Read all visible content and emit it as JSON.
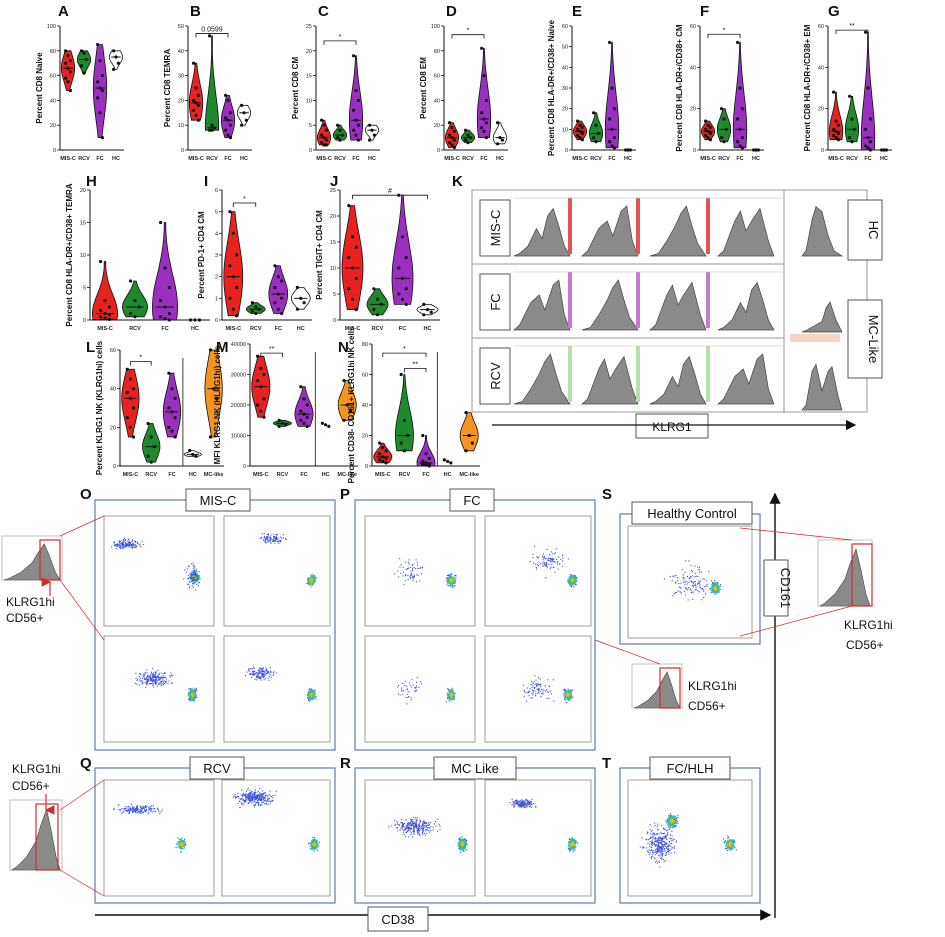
{
  "chart_data": [
    {
      "id": "A",
      "type": "violin",
      "ylabel": "Percent CD8 Naive",
      "categories": [
        "MIS-C",
        "RCV",
        "FC",
        "HC"
      ],
      "colors": [
        "#e8231f",
        "#1e8a2c",
        "#9b2fbf",
        "#ffffff"
      ],
      "ylim": [
        0,
        100
      ],
      "yticks": [
        0,
        20,
        40,
        60,
        80,
        100
      ],
      "series": [
        [
          80,
          76,
          72,
          70,
          66,
          63,
          58,
          55,
          48
        ],
        [
          80,
          78,
          73,
          68,
          62
        ],
        [
          85,
          72,
          60,
          55,
          50,
          48,
          42,
          30,
          10
        ],
        [
          80,
          75,
          70,
          65
        ]
      ],
      "annotations": []
    },
    {
      "id": "B",
      "type": "violin",
      "ylabel": "Percent CD8 TEMRA",
      "categories": [
        "MIS-C",
        "RCV",
        "FC",
        "HC"
      ],
      "colors": [
        "#e8231f",
        "#1e8a2c",
        "#9b2fbf",
        "#ffffff"
      ],
      "ylim": [
        0,
        50
      ],
      "yticks": [
        0,
        10,
        20,
        30,
        40,
        50
      ],
      "series": [
        [
          35,
          25,
          22,
          20,
          19,
          18,
          16,
          14,
          12
        ],
        [
          46,
          10,
          9,
          8,
          8
        ],
        [
          22,
          20,
          15,
          13,
          12,
          10,
          8,
          6,
          5
        ],
        [
          18,
          15,
          12,
          10
        ]
      ],
      "annotations": [
        {
          "from": 0,
          "to": 2,
          "text": "0.0599",
          "y": 47
        }
      ]
    },
    {
      "id": "C",
      "type": "violin",
      "ylabel": "Percent CD8 CM",
      "categories": [
        "MIS-C",
        "RCV",
        "FC",
        "HC"
      ],
      "colors": [
        "#e8231f",
        "#1e8a2c",
        "#9b2fbf",
        "#ffffff"
      ],
      "ylim": [
        0,
        25
      ],
      "yticks": [
        0,
        5,
        10,
        15,
        20,
        25
      ],
      "series": [
        [
          6,
          5,
          4,
          3,
          2.5,
          2,
          1.5,
          1,
          1
        ],
        [
          5,
          4,
          3,
          2.5,
          2
        ],
        [
          19,
          12,
          10,
          8,
          6,
          5,
          4,
          3,
          2
        ],
        [
          5,
          4,
          3,
          2
        ]
      ],
      "annotations": [
        {
          "from": 0,
          "to": 2,
          "text": "*",
          "y": 22
        }
      ]
    },
    {
      "id": "D",
      "type": "violin",
      "ylabel": "Percent CD8 EM",
      "categories": [
        "MIS-C",
        "RCV",
        "FC",
        "HC"
      ],
      "colors": [
        "#e8231f",
        "#1e8a2c",
        "#9b2fbf",
        "#ffffff"
      ],
      "ylim": [
        0,
        100
      ],
      "yticks": [
        0,
        20,
        40,
        60,
        80,
        100
      ],
      "series": [
        [
          22,
          18,
          15,
          12,
          10,
          8,
          6,
          4,
          2
        ],
        [
          16,
          12,
          10,
          8,
          6
        ],
        [
          82,
          60,
          40,
          30,
          25,
          22,
          18,
          15,
          10
        ],
        [
          22,
          10,
          8,
          5
        ]
      ],
      "annotations": [
        {
          "from": 0,
          "to": 2,
          "text": "*",
          "y": 93
        }
      ]
    },
    {
      "id": "E",
      "type": "violin",
      "ylabel": "Percent CD8 HLA-DR+/CD38+ Naive",
      "categories": [
        "MIS-C",
        "RCV",
        "FC",
        "HC"
      ],
      "colors": [
        "#e8231f",
        "#1e8a2c",
        "#9b2fbf",
        "#ffffff"
      ],
      "ylim": [
        0,
        60
      ],
      "yticks": [
        0,
        10,
        20,
        30,
        40,
        50,
        60
      ],
      "series": [
        [
          14,
          12,
          11,
          10,
          9,
          8,
          7,
          6,
          5
        ],
        [
          18,
          12,
          8,
          6,
          4
        ],
        [
          52,
          30,
          20,
          15,
          10,
          6,
          4,
          2,
          1
        ],
        [
          0,
          0,
          0
        ]
      ],
      "annotations": []
    },
    {
      "id": "F",
      "type": "violin",
      "ylabel": "Percent CD8 HLA-DR+/CD38+ CM",
      "categories": [
        "MIS-C",
        "RCV",
        "FC",
        "HC"
      ],
      "colors": [
        "#e8231f",
        "#1e8a2c",
        "#9b2fbf",
        "#ffffff"
      ],
      "ylim": [
        0,
        60
      ],
      "yticks": [
        0,
        20,
        40,
        60
      ],
      "series": [
        [
          14,
          12,
          11,
          10,
          9,
          8,
          7,
          6,
          5
        ],
        [
          20,
          15,
          10,
          6,
          4
        ],
        [
          52,
          30,
          20,
          15,
          10,
          6,
          4,
          2,
          1
        ],
        [
          0,
          0,
          0
        ]
      ],
      "annotations": [
        {
          "from": 0,
          "to": 2,
          "text": "*",
          "y": 56
        }
      ]
    },
    {
      "id": "G",
      "type": "violin",
      "ylabel": "Percent CD8 HLA-DR+/CD38+ EM",
      "categories": [
        "MIS-C",
        "RCV",
        "FC",
        "HC"
      ],
      "colors": [
        "#e8231f",
        "#1e8a2c",
        "#9b2fbf",
        "#ffffff"
      ],
      "ylim": [
        0,
        60
      ],
      "yticks": [
        0,
        20,
        40,
        60
      ],
      "series": [
        [
          28,
          14,
          12,
          10,
          9,
          8,
          7,
          6,
          5
        ],
        [
          26,
          15,
          10,
          6,
          4
        ],
        [
          57,
          30,
          15,
          10,
          6,
          4,
          2,
          1,
          0
        ],
        [
          0,
          0,
          0
        ]
      ],
      "annotations": [
        {
          "from": 0,
          "to": 2,
          "text": "**",
          "y": 58
        }
      ]
    },
    {
      "id": "H",
      "type": "violin",
      "ylabel": "Percent CD8 HLA-DR+/CD38+ TEMRA",
      "categories": [
        "MIS-C",
        "RCV",
        "FC",
        "HC"
      ],
      "colors": [
        "#e8231f",
        "#1e8a2c",
        "#9b2fbf",
        "#ffffff"
      ],
      "ylim": [
        0,
        20
      ],
      "yticks": [
        0,
        5,
        10,
        15,
        20
      ],
      "series": [
        [
          9,
          3,
          2,
          1.5,
          1,
          0.8,
          0.5,
          0.3,
          0.1
        ],
        [
          6,
          3,
          2,
          1,
          0.5
        ],
        [
          15,
          8,
          5,
          3,
          2,
          1,
          0.5,
          0.2,
          0
        ],
        [
          0,
          0,
          0
        ]
      ],
      "annotations": []
    },
    {
      "id": "I",
      "type": "violin",
      "ylabel": "Percent PD-1+ CD4 CM",
      "categories": [
        "MIS-C",
        "RCV",
        "FC",
        "HC"
      ],
      "colors": [
        "#e8231f",
        "#1e8a2c",
        "#9b2fbf",
        "#ffffff"
      ],
      "ylim": [
        0,
        6
      ],
      "yticks": [
        0,
        1,
        2,
        3,
        4,
        5,
        6
      ],
      "series": [
        [
          5,
          4,
          3,
          2.5,
          2,
          1.5,
          1,
          0.5,
          0.2
        ],
        [
          0.8,
          0.6,
          0.5,
          0.4,
          0.3
        ],
        [
          2.5,
          2,
          1.8,
          1.5,
          1.2,
          1,
          0.8,
          0.5,
          0.3
        ],
        [
          1.5,
          1,
          0.8,
          0.5
        ]
      ],
      "annotations": [
        {
          "from": 0,
          "to": 1,
          "text": "*",
          "y": 5.4
        }
      ]
    },
    {
      "id": "J",
      "type": "violin",
      "ylabel": "Percent TIGIT+ CD4 CM",
      "categories": [
        "MIS-C",
        "RCV",
        "FC",
        "HC"
      ],
      "colors": [
        "#e8231f",
        "#1e8a2c",
        "#9b2fbf",
        "#ffffff"
      ],
      "ylim": [
        0,
        25
      ],
      "yticks": [
        0,
        5,
        10,
        15,
        20,
        25
      ],
      "series": [
        [
          22,
          16,
          14,
          12,
          10,
          8,
          6,
          4,
          2
        ],
        [
          6,
          4,
          3,
          2,
          1
        ],
        [
          24,
          16,
          12,
          10,
          8,
          6,
          5,
          4,
          3
        ],
        [
          3,
          2,
          1.5,
          1
        ]
      ],
      "annotations": [
        {
          "from": 0,
          "to": 3,
          "text": "#",
          "y": 24
        }
      ]
    },
    {
      "id": "L",
      "type": "violin",
      "ylabel": "Percent KLRG1 NK (KLRG1hi) cells",
      "categories": [
        "MIS-C",
        "RCV",
        "FC",
        "HC",
        "MC-like"
      ],
      "colors": [
        "#e8231f",
        "#1e8a2c",
        "#9b2fbf",
        "#ffffff",
        "#f7941d"
      ],
      "ylim": [
        0,
        60
      ],
      "yticks": [
        0,
        20,
        40,
        60
      ],
      "series": [
        [
          50,
          45,
          40,
          38,
          35,
          30,
          25,
          20,
          15
        ],
        [
          22,
          15,
          10,
          5,
          2
        ],
        [
          48,
          40,
          35,
          30,
          28,
          25,
          20,
          18,
          15
        ],
        [
          8,
          6,
          5
        ],
        [
          60,
          40,
          35,
          15
        ]
      ],
      "annotations": [
        {
          "from": 0,
          "to": 1,
          "text": "*",
          "y": 54
        }
      ]
    },
    {
      "id": "M",
      "type": "violin",
      "ylabel": "MFI KLRG1 NK (KLRG1hi) cells",
      "categories": [
        "MIS-C",
        "RCV",
        "FC",
        "HC",
        "MC-like"
      ],
      "colors": [
        "#e8231f",
        "#1e8a2c",
        "#9b2fbf",
        "#ffffff",
        "#f7941d"
      ],
      "ylim": [
        0,
        40000
      ],
      "yticks": [
        0,
        10000,
        20000,
        30000,
        40000
      ],
      "series": [
        [
          36000,
          32000,
          30000,
          28000,
          26000,
          22000,
          20000,
          18000,
          16000
        ],
        [
          15000,
          14000,
          13500,
          13000
        ],
        [
          26000,
          22000,
          20000,
          18000,
          17000,
          16000,
          15000,
          14000,
          13000
        ],
        [
          14000,
          13500,
          13000
        ],
        [
          28000,
          20000,
          18000,
          15000
        ]
      ],
      "annotations": [
        {
          "from": 0,
          "to": 1,
          "text": "**",
          "y": 37000
        }
      ]
    },
    {
      "id": "N",
      "type": "violin",
      "ylabel": "Percent CD38- CD161+ KLRG1hi NK cells",
      "categories": [
        "MIS-C",
        "RCV",
        "FC",
        "HC",
        "MC-like"
      ],
      "colors": [
        "#e8231f",
        "#1e8a2c",
        "#9b2fbf",
        "#ffffff",
        "#f7941d"
      ],
      "ylim": [
        0,
        80
      ],
      "yticks": [
        0,
        20,
        40,
        60,
        80
      ],
      "series": [
        [
          15,
          12,
          10,
          8,
          6,
          5,
          4,
          3,
          2
        ],
        [
          60,
          30,
          20,
          15,
          10
        ],
        [
          20,
          8,
          5,
          3,
          2,
          1,
          1,
          0.5,
          0
        ],
        [
          4,
          3,
          2
        ],
        [
          35,
          20,
          15,
          10
        ]
      ],
      "annotations": [
        {
          "from": 0,
          "to": 2,
          "text": "*",
          "y": 74
        },
        {
          "from": 1,
          "to": 2,
          "text": "**",
          "y": 64
        }
      ]
    }
  ],
  "panel_letters": {
    "A": "A",
    "B": "B",
    "C": "C",
    "D": "D",
    "E": "E",
    "F": "F",
    "G": "G",
    "H": "H",
    "I": "I",
    "J": "J",
    "K": "K",
    "L": "L",
    "M": "M",
    "N": "N",
    "O": "O",
    "P": "P",
    "Q": "Q",
    "R": "R",
    "S": "S",
    "T": "T"
  },
  "histogram_panel": {
    "rows": [
      "MIS-C",
      "FC",
      "RCV"
    ],
    "bar_colors": [
      "#e8515a",
      "#c978d6",
      "#b6dfae"
    ],
    "right_labels": [
      "HC",
      "MC-Like"
    ],
    "xlabel": "KLRG1"
  },
  "flow": {
    "titles": {
      "misc": "MIS-C",
      "fc": "FC",
      "hc": "Healthy Control",
      "rcv": "RCV",
      "mclike": "MC Like",
      "fchlh": "FC/HLH"
    },
    "klrg1_callouts": [
      [
        "KLRG1hi",
        "CD56+"
      ],
      [
        "KLRG1hi",
        "CD56+"
      ],
      [
        "KLRG1hi",
        "CD56+"
      ],
      [
        "KLRG1hi",
        "CD56+"
      ]
    ],
    "axis_y": "CD161",
    "axis_x": "CD38"
  }
}
